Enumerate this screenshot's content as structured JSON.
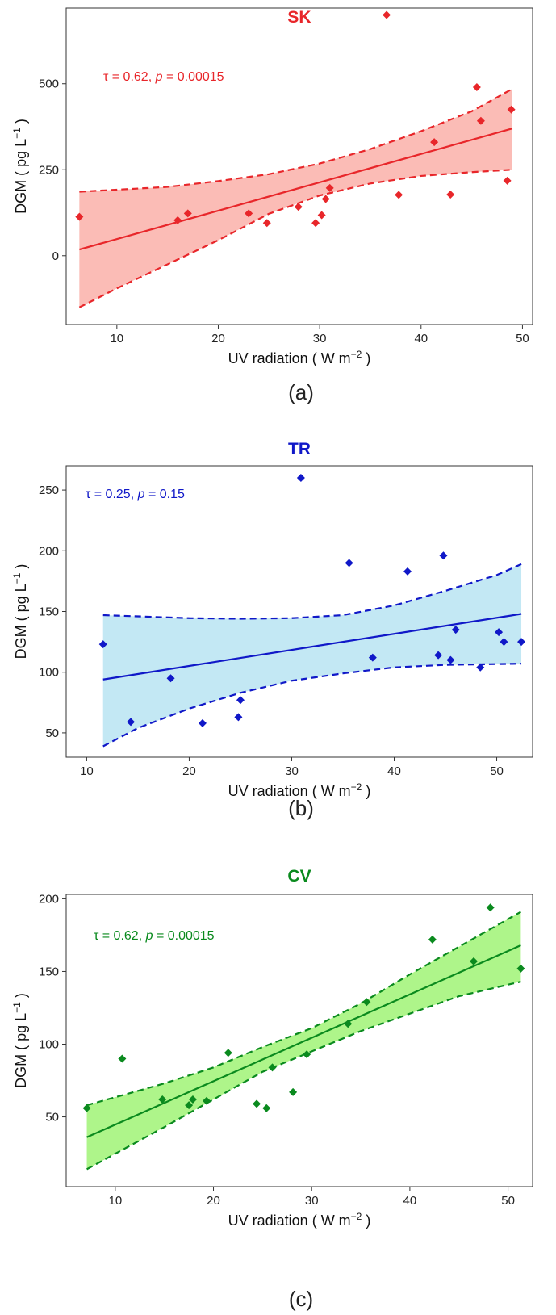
{
  "chart_data": [
    {
      "type": "scatter",
      "title": "SK",
      "panel_label": "(a)",
      "xlabel_prefix": "UV radiation",
      "xlabel_unit": "W m",
      "xlabel_exp": "−2",
      "ylabel_prefix": "DGM",
      "ylabel_unit": "pg L",
      "ylabel_exp": "−1",
      "annotation": {
        "tau": "τ = 0.62, ",
        "p_symbol": "p",
        "p_value": " = 0.00015"
      },
      "xlim": [
        5,
        51
      ],
      "ylim": [
        -200,
        720
      ],
      "xticks": [
        10,
        20,
        30,
        40,
        50
      ],
      "yticks": [
        0,
        250,
        500
      ],
      "color": "#e8262a",
      "fill": "#fbbcb6",
      "points": [
        [
          6.3,
          113
        ],
        [
          16,
          103
        ],
        [
          17,
          123
        ],
        [
          23,
          123
        ],
        [
          24.8,
          95
        ],
        [
          27.9,
          142
        ],
        [
          29.6,
          95
        ],
        [
          30.2,
          118
        ],
        [
          30.6,
          165
        ],
        [
          31,
          197
        ],
        [
          36.6,
          700
        ],
        [
          37.8,
          177
        ],
        [
          41.3,
          330
        ],
        [
          42.9,
          178
        ],
        [
          45.5,
          490
        ],
        [
          45.9,
          392
        ],
        [
          48.5,
          218
        ],
        [
          48.9,
          425
        ]
      ],
      "fit": {
        "x": [
          6.3,
          49
        ],
        "y": [
          18,
          370
        ]
      },
      "ci_upper": [
        [
          6.3,
          186
        ],
        [
          15,
          200
        ],
        [
          20,
          217
        ],
        [
          25,
          237
        ],
        [
          30,
          268
        ],
        [
          35,
          310
        ],
        [
          40,
          362
        ],
        [
          45,
          420
        ],
        [
          49,
          485
        ]
      ],
      "ci_lower": [
        [
          6.3,
          -150
        ],
        [
          10,
          -95
        ],
        [
          15,
          -25
        ],
        [
          20,
          45
        ],
        [
          25,
          122
        ],
        [
          30,
          175
        ],
        [
          35,
          210
        ],
        [
          40,
          232
        ],
        [
          45,
          243
        ],
        [
          49,
          250
        ]
      ]
    },
    {
      "type": "scatter",
      "title": "TR",
      "panel_label": "(b)",
      "xlabel_prefix": "UV radiation",
      "xlabel_unit": "W m",
      "xlabel_exp": "−2",
      "ylabel_prefix": "DGM",
      "ylabel_unit": "pg L",
      "ylabel_exp": "−1",
      "annotation": {
        "tau": "τ = 0.25, ",
        "p_symbol": "p",
        "p_value": " = 0.15"
      },
      "xlim": [
        8,
        53.5
      ],
      "ylim": [
        30,
        270
      ],
      "xticks": [
        10,
        20,
        30,
        40,
        50
      ],
      "yticks": [
        50,
        100,
        150,
        200,
        250
      ],
      "color": "#1018c8",
      "fill": "#c3e8f4",
      "points": [
        [
          11.6,
          123
        ],
        [
          14.3,
          59
        ],
        [
          18.2,
          95
        ],
        [
          21.3,
          58
        ],
        [
          24.8,
          63
        ],
        [
          25,
          77
        ],
        [
          30.9,
          260
        ],
        [
          35.6,
          190
        ],
        [
          37.9,
          112
        ],
        [
          41.3,
          183
        ],
        [
          44.3,
          114
        ],
        [
          44.8,
          196
        ],
        [
          45.5,
          110
        ],
        [
          46,
          135
        ],
        [
          48.4,
          104
        ],
        [
          50.2,
          133
        ],
        [
          50.7,
          125
        ],
        [
          52.4,
          125
        ]
      ],
      "fit": {
        "x": [
          11.6,
          52.4
        ],
        "y": [
          94,
          148
        ]
      },
      "ci_upper": [
        [
          11.6,
          147
        ],
        [
          15,
          146
        ],
        [
          20,
          144.5
        ],
        [
          25,
          144
        ],
        [
          30,
          144.5
        ],
        [
          35,
          147
        ],
        [
          40,
          155
        ],
        [
          45,
          167
        ],
        [
          50,
          180
        ],
        [
          52.4,
          189
        ]
      ],
      "ci_lower": [
        [
          11.6,
          39
        ],
        [
          15,
          54
        ],
        [
          20,
          70
        ],
        [
          25,
          83
        ],
        [
          30,
          93
        ],
        [
          35,
          99
        ],
        [
          40,
          104
        ],
        [
          45,
          106
        ],
        [
          52.4,
          107
        ]
      ]
    },
    {
      "type": "scatter",
      "title": "CV",
      "panel_label": "(c)",
      "xlabel_prefix": "UV radiation",
      "xlabel_unit": "W m",
      "xlabel_exp": "−2",
      "ylabel_prefix": "DGM",
      "ylabel_unit": "pg L",
      "ylabel_exp": "−1",
      "annotation": {
        "tau": "τ = 0.62, ",
        "p_symbol": "p",
        "p_value": " = 0.00015"
      },
      "xlim": [
        5,
        52.5
      ],
      "ylim": [
        2,
        203
      ],
      "xticks": [
        10,
        20,
        30,
        40,
        50
      ],
      "yticks": [
        50,
        100,
        150,
        200
      ],
      "color": "#0a8a1e",
      "fill": "#aef58a",
      "points": [
        [
          7.1,
          56
        ],
        [
          10.7,
          90
        ],
        [
          14.8,
          62
        ],
        [
          17.5,
          58
        ],
        [
          17.9,
          62
        ],
        [
          19.3,
          61
        ],
        [
          21.5,
          94
        ],
        [
          24.4,
          59
        ],
        [
          25.4,
          56
        ],
        [
          26,
          84
        ],
        [
          28.1,
          67
        ],
        [
          29.5,
          93
        ],
        [
          33.7,
          114
        ],
        [
          35.6,
          129
        ],
        [
          42.3,
          172
        ],
        [
          46.5,
          157
        ],
        [
          48.2,
          194
        ],
        [
          51.3,
          152
        ]
      ],
      "fit": {
        "x": [
          7.1,
          51.3
        ],
        "y": [
          36,
          168
        ]
      },
      "ci_upper": [
        [
          7.1,
          58
        ],
        [
          15,
          73
        ],
        [
          20,
          84
        ],
        [
          25,
          98
        ],
        [
          30,
          111
        ],
        [
          35,
          128
        ],
        [
          40,
          148
        ],
        [
          45,
          167
        ],
        [
          51.3,
          191
        ]
      ],
      "ci_lower": [
        [
          7.1,
          14
        ],
        [
          15,
          43
        ],
        [
          20,
          62
        ],
        [
          25,
          81
        ],
        [
          30,
          95
        ],
        [
          35,
          109
        ],
        [
          40,
          121
        ],
        [
          45,
          133
        ],
        [
          51.3,
          143
        ]
      ]
    }
  ]
}
